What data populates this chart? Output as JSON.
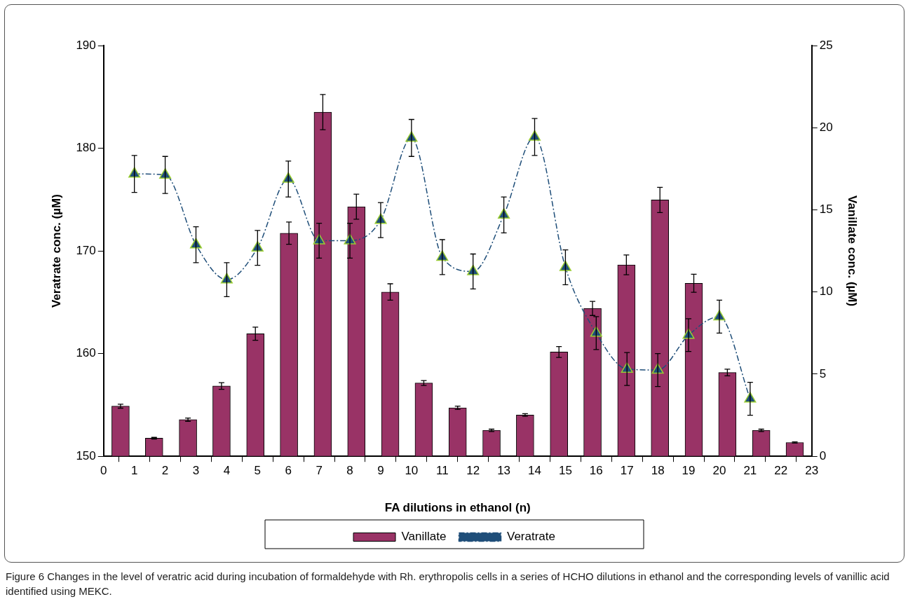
{
  "chart_data": {
    "type": "bar",
    "xlabel": "FA dilutions in ethanol (n)",
    "ylabel": "Veratrate conc. (µM)",
    "y2label": "Vanillate conc. (µM)",
    "xlim": [
      0,
      23
    ],
    "xticks": [
      0,
      1,
      2,
      3,
      4,
      5,
      6,
      7,
      8,
      9,
      10,
      11,
      12,
      13,
      14,
      15,
      16,
      17,
      18,
      19,
      20,
      21,
      22,
      23
    ],
    "ylim": [
      150,
      190
    ],
    "yticks": [
      150,
      160,
      170,
      180,
      190
    ],
    "y2lim": [
      0,
      25
    ],
    "y2ticks": [
      0,
      5,
      10,
      15,
      20,
      25
    ],
    "series": [
      {
        "name": "Vanillate",
        "axis": "y2",
        "color": "#993366",
        "x": [
          0.55,
          1.64,
          2.74,
          3.83,
          4.93,
          6.02,
          7.12,
          8.21,
          9.31,
          10.4,
          11.5,
          12.6,
          13.69,
          14.79,
          15.88,
          16.98,
          18.07,
          19.17,
          20.26,
          21.36,
          22.45
        ],
        "values": [
          3.05,
          1.1,
          2.23,
          4.28,
          7.46,
          13.58,
          20.95,
          15.19,
          10.0,
          4.46,
          2.95,
          1.58,
          2.51,
          6.35,
          9.0,
          11.65,
          15.6,
          10.53,
          5.1,
          1.58,
          0.84
        ],
        "errors": [
          0.12,
          0.05,
          0.1,
          0.2,
          0.4,
          0.68,
          1.07,
          0.76,
          0.5,
          0.15,
          0.1,
          0.07,
          0.08,
          0.33,
          0.43,
          0.6,
          0.77,
          0.55,
          0.2,
          0.07,
          0.04
        ]
      },
      {
        "name": "Veratrate",
        "type": "line",
        "x": [
          1,
          2,
          3,
          4,
          5,
          6,
          7,
          8,
          9,
          10,
          11,
          12,
          13,
          14,
          15,
          16,
          17,
          18,
          19,
          20,
          21
        ],
        "color": "#1f4e79",
        "values": [
          177.5,
          177.4,
          170.6,
          167.2,
          170.3,
          177.0,
          171.0,
          171.0,
          173.0,
          181.0,
          169.4,
          168.0,
          173.5,
          181.1,
          168.4,
          162.0,
          158.5,
          158.4,
          161.8,
          163.6,
          155.6
        ],
        "errors": [
          1.8,
          1.8,
          1.75,
          1.65,
          1.7,
          1.75,
          1.7,
          1.7,
          1.7,
          1.8,
          1.7,
          1.7,
          1.75,
          1.8,
          1.7,
          1.6,
          1.6,
          1.6,
          1.6,
          1.6,
          1.6
        ]
      }
    ],
    "marker": "triangle",
    "line_style": "dashed",
    "legend": "bottom",
    "annotations": [
      "Figure 6 Changes in the level of veratric acid during incubation of formaldehyde with Rh. erythropolis cells in a series of HCHO dilutions in ethanol and the corresponding levels of vanillic acid identified using MEKC."
    ]
  }
}
